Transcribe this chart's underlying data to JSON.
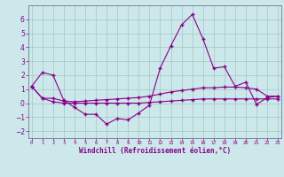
{
  "xlabel": "Windchill (Refroidissement éolien,°C)",
  "x": [
    0,
    1,
    2,
    3,
    4,
    5,
    6,
    7,
    8,
    9,
    10,
    11,
    12,
    13,
    14,
    15,
    16,
    17,
    18,
    19,
    20,
    21,
    22,
    23
  ],
  "line1": [
    1.2,
    2.2,
    2.0,
    0.2,
    -0.3,
    -0.8,
    -0.8,
    -1.5,
    -1.1,
    -1.2,
    -0.7,
    -0.15,
    2.5,
    4.1,
    5.6,
    6.35,
    4.6,
    2.5,
    2.6,
    1.2,
    1.5,
    -0.1,
    0.4,
    0.5
  ],
  "line2": [
    1.2,
    0.35,
    0.35,
    0.15,
    0.1,
    0.15,
    0.2,
    0.25,
    0.3,
    0.35,
    0.4,
    0.5,
    0.65,
    0.8,
    0.9,
    1.0,
    1.1,
    1.1,
    1.15,
    1.15,
    1.1,
    1.0,
    0.5,
    0.5
  ],
  "line3": [
    1.2,
    0.35,
    0.1,
    0.0,
    0.0,
    0.0,
    0.0,
    0.0,
    0.0,
    0.0,
    0.0,
    0.05,
    0.1,
    0.15,
    0.2,
    0.25,
    0.3,
    0.3,
    0.3,
    0.3,
    0.3,
    0.3,
    0.3,
    0.3
  ],
  "bg_color": "#cce8ea",
  "line_color": "#880088",
  "grid_color": "#aacccc",
  "ylim": [
    -2.5,
    7.0
  ],
  "xlim": [
    -0.3,
    23.3
  ],
  "yticks": [
    -2,
    -1,
    0,
    1,
    2,
    3,
    4,
    5,
    6
  ],
  "xticks": [
    0,
    1,
    2,
    3,
    4,
    5,
    6,
    7,
    8,
    9,
    10,
    11,
    12,
    13,
    14,
    15,
    16,
    17,
    18,
    19,
    20,
    21,
    22,
    23
  ]
}
